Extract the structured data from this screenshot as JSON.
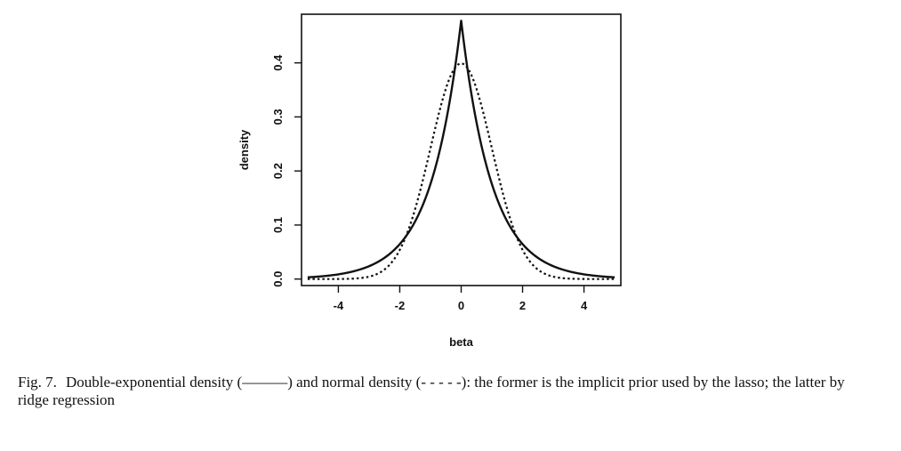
{
  "chart_data": {
    "type": "line",
    "title": "",
    "xlabel": "beta",
    "ylabel": "density",
    "xlim": [
      -5.2,
      5.2
    ],
    "ylim": [
      -0.012,
      0.49
    ],
    "xticks": [
      -4,
      -2,
      0,
      2,
      4
    ],
    "yticks": [
      0.0,
      0.1,
      0.2,
      0.3,
      0.4
    ],
    "xtick_labels": [
      "-4",
      "-2",
      "0",
      "2",
      "4"
    ],
    "ytick_labels": [
      "0.0",
      "0.1",
      "0.2",
      "0.3",
      "0.4"
    ],
    "grid": false,
    "legend": "none",
    "series": [
      {
        "style": "solid",
        "x": [
          -5,
          -4.5,
          -4,
          -3.5,
          -3,
          -2.5,
          -2,
          -1.5,
          -1,
          -0.75,
          -0.5,
          -0.25,
          0,
          0.25,
          0.5,
          0.75,
          1,
          1.5,
          2,
          2.5,
          3,
          3.5,
          4,
          4.5,
          5
        ],
        "y": [
          0.003,
          0.005,
          0.008,
          0.014,
          0.023,
          0.038,
          0.064,
          0.106,
          0.176,
          0.226,
          0.29,
          0.372,
          0.478,
          0.372,
          0.29,
          0.226,
          0.176,
          0.106,
          0.064,
          0.038,
          0.023,
          0.014,
          0.008,
          0.005,
          0.003
        ]
      },
      {
        "style": "dotted",
        "x": [
          -5,
          -4.5,
          -4,
          -3.5,
          -3,
          -2.5,
          -2,
          -1.5,
          -1,
          -0.75,
          -0.5,
          -0.25,
          0,
          0.25,
          0.5,
          0.75,
          1,
          1.5,
          2,
          2.5,
          3,
          3.5,
          4,
          4.5,
          5
        ],
        "y": [
          0.0,
          0.0,
          0.0,
          0.001,
          0.004,
          0.018,
          0.054,
          0.13,
          0.242,
          0.301,
          0.352,
          0.387,
          0.399,
          0.387,
          0.352,
          0.301,
          0.242,
          0.13,
          0.054,
          0.018,
          0.004,
          0.001,
          0.0,
          0.0,
          0.0
        ]
      }
    ]
  },
  "caption": {
    "number": "Fig. 7.",
    "text": "Double-exponential density (———) and normal density (- - - - -): the former is the implicit prior used by the lasso; the latter by ridge regression"
  }
}
